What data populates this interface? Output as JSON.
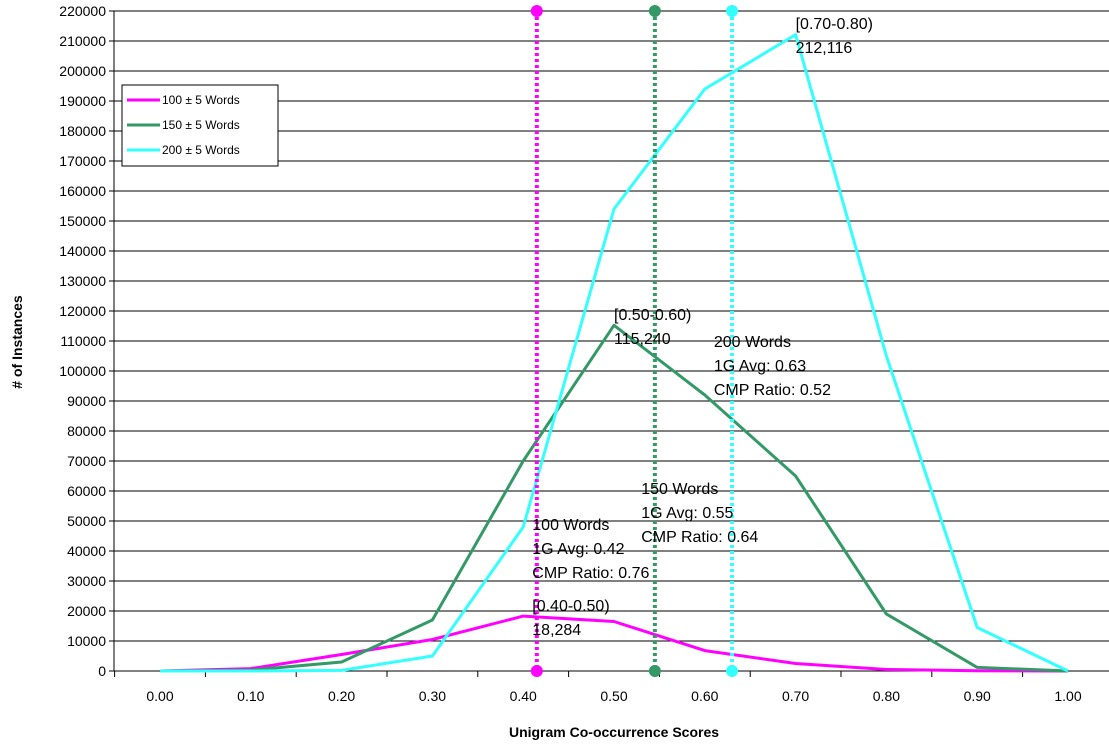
{
  "chart_data": {
    "type": "line",
    "title": "",
    "xlabel": "Unigram Co-occurrence Scores",
    "ylabel": "# of Instances",
    "xlim": [
      0,
      1
    ],
    "ylim": [
      0,
      220000
    ],
    "y_tick_step": 10000,
    "grid": "horizontal",
    "legend_position": "top-left",
    "x_tick_labels": [
      "0.00",
      "0.10",
      "0.20",
      "0.30",
      "0.40",
      "0.50",
      "0.60",
      "0.70",
      "0.80",
      "0.90",
      "1.00"
    ],
    "x": [
      0.0,
      0.1,
      0.2,
      0.3,
      0.4,
      0.5,
      0.6,
      0.7,
      0.8,
      0.9,
      1.0
    ],
    "series": [
      {
        "name": "100 ± 5 Words",
        "color": "#ff00ff",
        "values": [
          0,
          800,
          5500,
          10500,
          18284,
          16500,
          6800,
          2500,
          500,
          100,
          0
        ]
      },
      {
        "name": "150 ± 5 Words",
        "color": "#339966",
        "values": [
          0,
          300,
          3000,
          17000,
          70000,
          115240,
          92000,
          65000,
          19000,
          1200,
          0
        ]
      },
      {
        "name": "200 ± 5 Words",
        "color": "#33ffff",
        "values": [
          0,
          0,
          200,
          5000,
          48000,
          154000,
          194000,
          212116,
          105000,
          14500,
          0
        ]
      }
    ],
    "reference_lines": [
      {
        "x": 0.415,
        "color": "#ff00ff"
      },
      {
        "x": 0.545,
        "color": "#339966"
      },
      {
        "x": 0.63,
        "color": "#33ffff"
      }
    ],
    "annotations": [
      {
        "x": 0.41,
        "y": 20000,
        "lines": [
          "[0.40-0.50)",
          "18,284"
        ]
      },
      {
        "x": 0.41,
        "y": 47000,
        "lines": [
          "100 Words",
          "1G Avg: 0.42",
          "CMP Ratio: 0.76"
        ]
      },
      {
        "x": 0.53,
        "y": 59000,
        "lines": [
          "150 Words",
          "1G Avg: 0.55",
          "CMP Ratio: 0.64"
        ]
      },
      {
        "x": 0.5,
        "y": 117000,
        "lines": [
          "[0.50-0.60)",
          "115,240"
        ]
      },
      {
        "x": 0.61,
        "y": 108000,
        "lines": [
          "200 Words",
          "1G Avg: 0.63",
          "CMP Ratio: 0.52"
        ]
      },
      {
        "x": 0.7,
        "y": 214000,
        "lines": [
          "[0.70-0.80)",
          "212,116"
        ]
      }
    ]
  }
}
